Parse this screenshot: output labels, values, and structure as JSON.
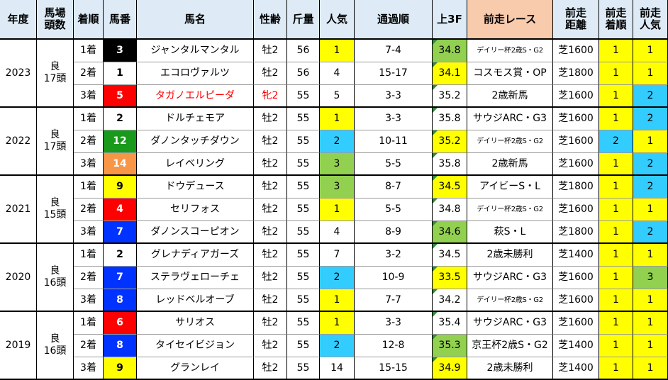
{
  "headers": {
    "year": "年度",
    "track": [
      "馬場",
      "頭数"
    ],
    "finish": "着順",
    "post": "馬番",
    "horse": "馬名",
    "sexage": "性齢",
    "weight": "斤量",
    "pop": "人気",
    "pass": "通過順",
    "last3f": "上3F",
    "prev_race": "前走レース",
    "prev_dist": [
      "前走",
      "距離"
    ],
    "prev_finish": [
      "前走",
      "着順"
    ],
    "prev_pop": [
      "前走",
      "人気"
    ]
  },
  "colors": {
    "header_blue": "#deebf7",
    "header_pink": "#f8cbad",
    "yellow": "#ffff00",
    "cyan": "#33ccff",
    "green": "#92d050",
    "waku_black": "#000000",
    "waku_red": "#ff0000",
    "waku_blue": "#0033ff",
    "waku_yellow": "#ffff00",
    "waku_green": "#1a9a1a",
    "waku_orange": "#f79646",
    "waku_white": "#ffffff"
  },
  "groups": [
    {
      "year": "2023",
      "going": "良",
      "runners": "17頭",
      "rows": [
        {
          "finish": "1着",
          "post": "3",
          "waku": "black",
          "horse": "ジャンタルマンタル",
          "sexage": "牡2",
          "weight": "56",
          "pop": "1",
          "pop_hl": "yellow",
          "pass": "7-4",
          "last3f": "34.8",
          "l3f_hl": "green",
          "prev_race": "デイリー杯2歳S・G2",
          "prev_small": true,
          "prev_dist": "芝1600",
          "prev_finish": "1",
          "pf_hl": "yellow",
          "prev_pop": "1",
          "pp_hl": "yellow"
        },
        {
          "finish": "2着",
          "post": "1",
          "waku": "white",
          "horse": "エコロヴァルツ",
          "sexage": "牡2",
          "weight": "56",
          "pop": "4",
          "pop_hl": "",
          "pass": "15-17",
          "last3f": "34.1",
          "l3f_hl": "yellow",
          "prev_race": "コスモス賞・OP",
          "prev_small": false,
          "prev_dist": "芝1800",
          "prev_finish": "1",
          "pf_hl": "yellow",
          "prev_pop": "1",
          "pp_hl": "yellow"
        },
        {
          "finish": "3着",
          "post": "5",
          "waku": "red",
          "horse": "タガノエルピーダ",
          "horse_red": true,
          "sexage": "牝2",
          "weight": "55",
          "pop": "5",
          "pop_hl": "",
          "pass": "3-3",
          "last3f": "35.2",
          "l3f_hl": "",
          "prev_race": "2歳新馬",
          "prev_small": false,
          "prev_dist": "芝1600",
          "prev_finish": "1",
          "pf_hl": "yellow",
          "prev_pop": "2",
          "pp_hl": "cyan"
        }
      ]
    },
    {
      "year": "2022",
      "going": "良",
      "runners": "17頭",
      "rows": [
        {
          "finish": "1着",
          "post": "2",
          "waku": "white",
          "horse": "ドルチェモア",
          "sexage": "牡2",
          "weight": "55",
          "pop": "1",
          "pop_hl": "yellow",
          "pass": "3-3",
          "last3f": "35.8",
          "l3f_hl": "",
          "prev_race": "サウジARC・G3",
          "prev_small": false,
          "prev_dist": "芝1600",
          "prev_finish": "1",
          "pf_hl": "yellow",
          "prev_pop": "2",
          "pp_hl": "cyan"
        },
        {
          "finish": "2着",
          "post": "12",
          "waku": "green",
          "horse": "ダノンタッチダウン",
          "sexage": "牡2",
          "weight": "55",
          "pop": "2",
          "pop_hl": "cyan",
          "pass": "10-11",
          "last3f": "35.2",
          "l3f_hl": "yellow",
          "prev_race": "デイリー杯2歳S・G2",
          "prev_small": true,
          "prev_dist": "芝1600",
          "prev_finish": "2",
          "pf_hl": "cyan",
          "prev_pop": "1",
          "pp_hl": "yellow"
        },
        {
          "finish": "3着",
          "post": "14",
          "waku": "orange",
          "horse": "レイベリング",
          "sexage": "牡2",
          "weight": "55",
          "pop": "3",
          "pop_hl": "green",
          "pass": "5-5",
          "last3f": "35.8",
          "l3f_hl": "",
          "prev_race": "2歳新馬",
          "prev_small": false,
          "prev_dist": "芝1600",
          "prev_finish": "1",
          "pf_hl": "yellow",
          "prev_pop": "2",
          "pp_hl": "cyan"
        }
      ]
    },
    {
      "year": "2021",
      "going": "良",
      "runners": "15頭",
      "rows": [
        {
          "finish": "1着",
          "post": "9",
          "waku": "yellow",
          "horse": "ドウデュース",
          "sexage": "牡2",
          "weight": "55",
          "pop": "3",
          "pop_hl": "green",
          "pass": "8-7",
          "last3f": "34.5",
          "l3f_hl": "yellow",
          "prev_race": "アイビーS・L",
          "prev_small": false,
          "prev_dist": "芝1800",
          "prev_finish": "1",
          "pf_hl": "yellow",
          "prev_pop": "2",
          "pp_hl": "cyan"
        },
        {
          "finish": "2着",
          "post": "4",
          "waku": "red",
          "horse": "セリフォス",
          "sexage": "牡2",
          "weight": "55",
          "pop": "1",
          "pop_hl": "yellow",
          "pass": "5-5",
          "last3f": "34.8",
          "l3f_hl": "",
          "prev_race": "デイリー杯2歳S・G2",
          "prev_small": true,
          "prev_dist": "芝1600",
          "prev_finish": "1",
          "pf_hl": "yellow",
          "prev_pop": "1",
          "pp_hl": "yellow"
        },
        {
          "finish": "3着",
          "post": "7",
          "waku": "blue",
          "horse": "ダノンスコーピオン",
          "sexage": "牡2",
          "weight": "55",
          "pop": "4",
          "pop_hl": "",
          "pass": "8-9",
          "last3f": "34.6",
          "l3f_hl": "green",
          "prev_race": "萩S・L",
          "prev_small": false,
          "prev_dist": "芝1800",
          "prev_finish": "1",
          "pf_hl": "yellow",
          "prev_pop": "2",
          "pp_hl": "cyan"
        }
      ]
    },
    {
      "year": "2020",
      "going": "良",
      "runners": "16頭",
      "rows": [
        {
          "finish": "1着",
          "post": "2",
          "waku": "white",
          "horse": "グレナディアガーズ",
          "sexage": "牡2",
          "weight": "55",
          "pop": "7",
          "pop_hl": "",
          "pass": "3-2",
          "last3f": "34.5",
          "l3f_hl": "",
          "prev_race": "2歳未勝利",
          "prev_small": false,
          "prev_dist": "芝1400",
          "prev_finish": "1",
          "pf_hl": "yellow",
          "prev_pop": "1",
          "pp_hl": "yellow"
        },
        {
          "finish": "2着",
          "post": "7",
          "waku": "blue",
          "horse": "ステラヴェローチェ",
          "sexage": "牡2",
          "weight": "55",
          "pop": "2",
          "pop_hl": "cyan",
          "pass": "10-9",
          "last3f": "33.5",
          "l3f_hl": "yellow",
          "prev_race": "サウジARC・G3",
          "prev_small": false,
          "prev_dist": "芝1600",
          "prev_finish": "1",
          "pf_hl": "yellow",
          "prev_pop": "3",
          "pp_hl": "green"
        },
        {
          "finish": "3着",
          "post": "8",
          "waku": "blue",
          "horse": "レッドベルオーブ",
          "sexage": "牡2",
          "weight": "55",
          "pop": "1",
          "pop_hl": "yellow",
          "pass": "7-7",
          "last3f": "34.2",
          "l3f_hl": "",
          "prev_race": "デイリー杯2歳S・G2",
          "prev_small": true,
          "prev_dist": "芝1600",
          "prev_finish": "1",
          "pf_hl": "yellow",
          "prev_pop": "1",
          "pp_hl": "yellow"
        }
      ]
    },
    {
      "year": "2019",
      "going": "良",
      "runners": "16頭",
      "rows": [
        {
          "finish": "1着",
          "post": "6",
          "waku": "red",
          "horse": "サリオス",
          "sexage": "牡2",
          "weight": "55",
          "pop": "1",
          "pop_hl": "yellow",
          "pass": "3-3",
          "last3f": "35.4",
          "l3f_hl": "",
          "prev_race": "サウジARC・G3",
          "prev_small": false,
          "prev_dist": "芝1600",
          "prev_finish": "1",
          "pf_hl": "yellow",
          "prev_pop": "1",
          "pp_hl": "yellow"
        },
        {
          "finish": "2着",
          "post": "8",
          "waku": "blue",
          "horse": "タイセイビジョン",
          "sexage": "牡2",
          "weight": "55",
          "pop": "2",
          "pop_hl": "cyan",
          "pass": "12-8",
          "last3f": "35.3",
          "l3f_hl": "green",
          "prev_race": "京王杯2歳S・G2",
          "prev_small": false,
          "prev_dist": "芝1400",
          "prev_finish": "1",
          "pf_hl": "yellow",
          "prev_pop": "1",
          "pp_hl": "yellow"
        },
        {
          "finish": "3着",
          "post": "9",
          "waku": "yellow",
          "horse": "グランレイ",
          "sexage": "牡2",
          "weight": "55",
          "pop": "14",
          "pop_hl": "",
          "pass": "15-15",
          "last3f": "34.9",
          "l3f_hl": "yellow",
          "prev_race": "2歳未勝利",
          "prev_small": false,
          "prev_dist": "芝1400",
          "prev_finish": "1",
          "pf_hl": "yellow",
          "prev_pop": "1",
          "pp_hl": "yellow"
        }
      ]
    }
  ]
}
